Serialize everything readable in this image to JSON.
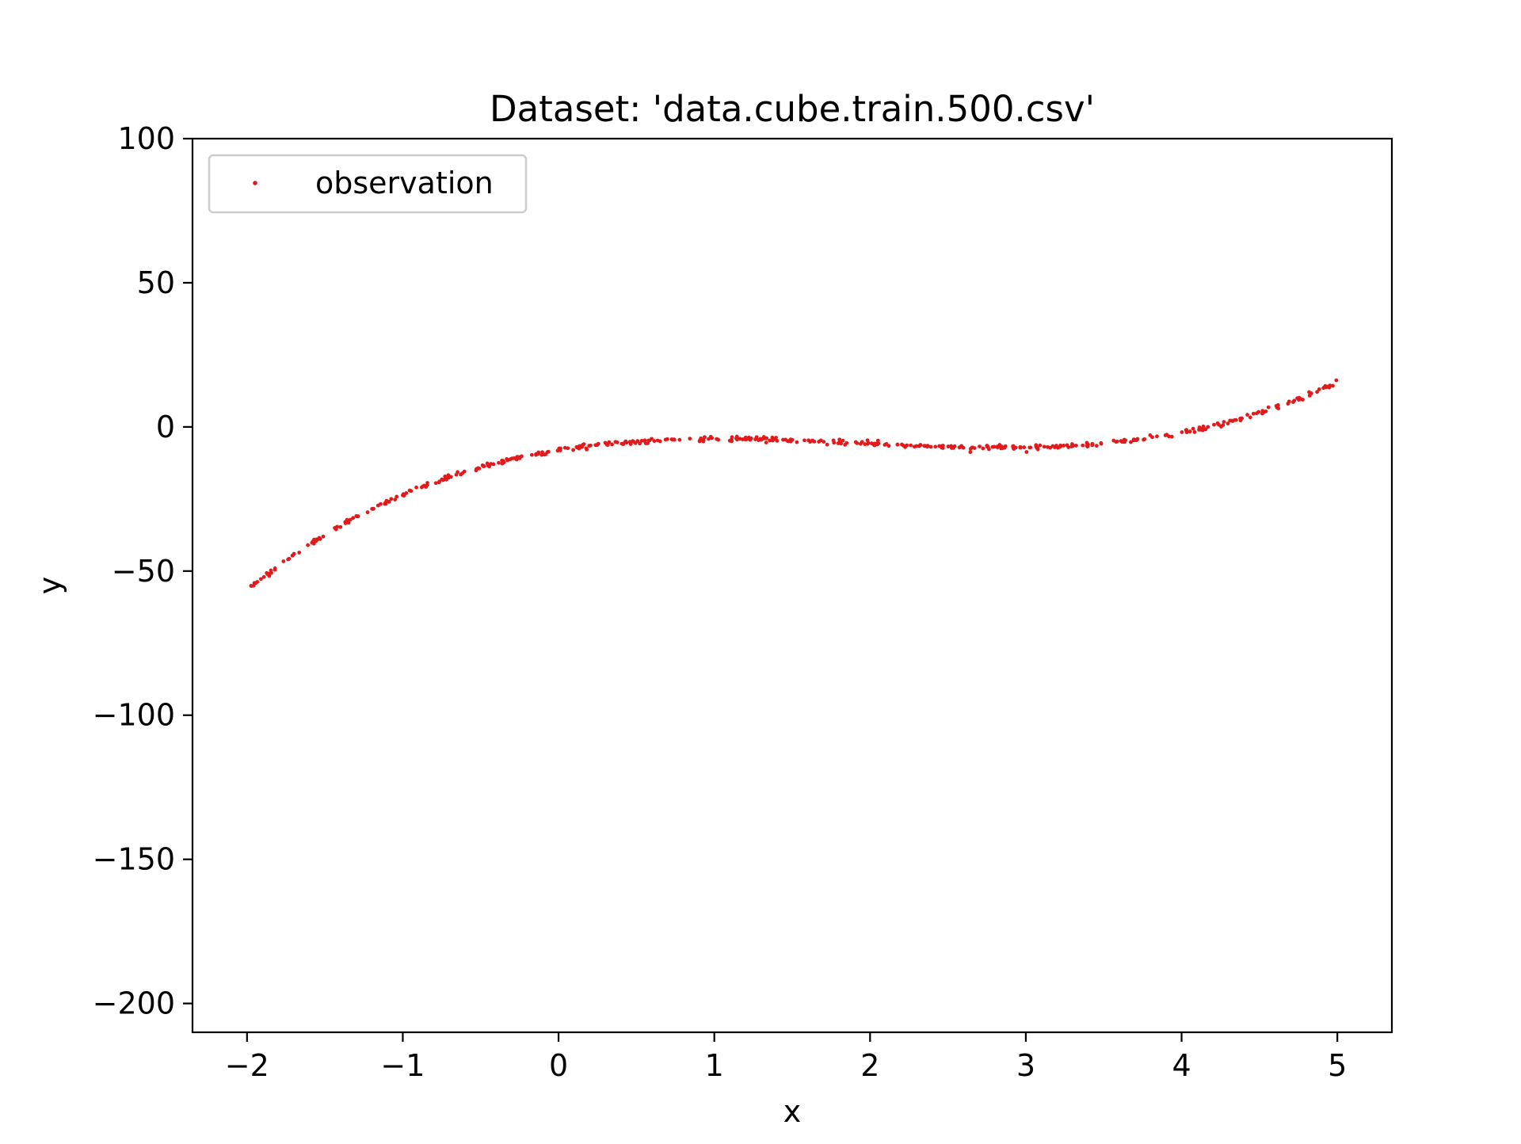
{
  "chart_data": {
    "type": "scatter",
    "title": "Dataset: 'data.cube.train.500.csv'",
    "xlabel": "x",
    "ylabel": "y",
    "xlim": [
      -2.35,
      5.35
    ],
    "ylim": [
      -210,
      100
    ],
    "xticks": [
      -2,
      -1,
      0,
      1,
      2,
      3,
      4,
      5
    ],
    "xtick_labels": [
      "−2",
      "−1",
      "0",
      "1",
      "2",
      "3",
      "4",
      "5"
    ],
    "yticks": [
      -200,
      -150,
      -100,
      -50,
      0,
      50,
      100
    ],
    "ytick_labels": [
      "−200",
      "−150",
      "−100",
      "−50",
      "0",
      "50",
      "100"
    ],
    "grid": false,
    "legend": {
      "position": "upper-left",
      "entries": [
        "observation"
      ]
    },
    "series": [
      {
        "name": "observation",
        "color": "#e31a1c",
        "marker": "dot",
        "count": 500,
        "x_range": [
          -2,
          5
        ],
        "model": "y = x^3 - 5.8x^2 + 8.7x - 8 (+ small noise)",
        "noise_sd": 0.4
      }
    ]
  }
}
